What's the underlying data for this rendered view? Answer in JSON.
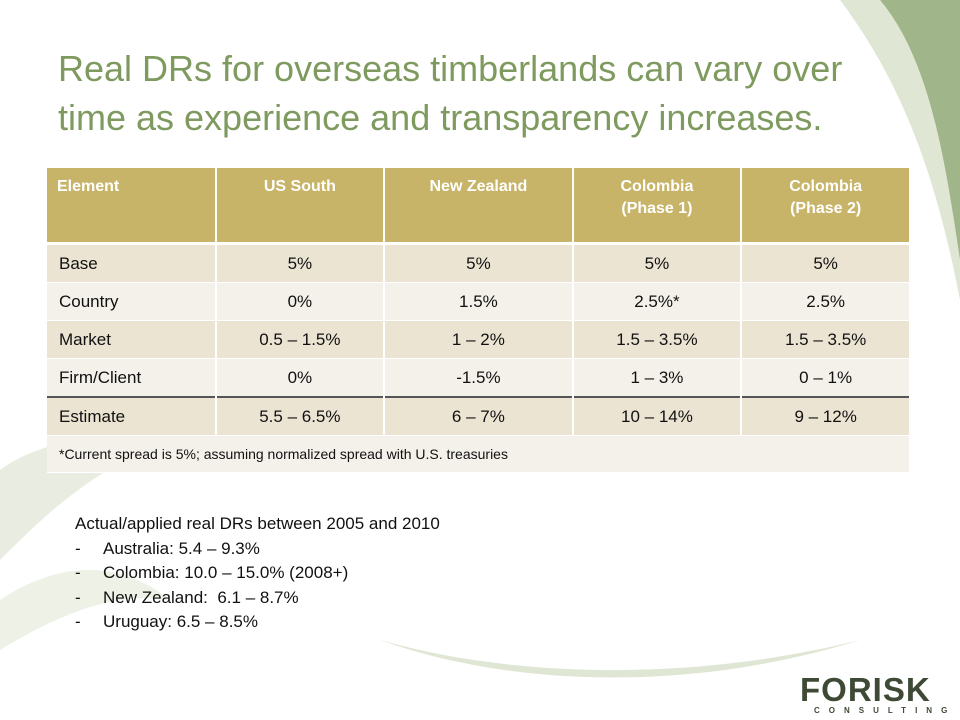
{
  "title": "Real DRs for overseas timberlands can vary over time as experience and transparency increases.",
  "table": {
    "headers": [
      "Element",
      "US South",
      "New Zealand",
      "Colombia\n(Phase 1)",
      "Colombia\n(Phase 2)"
    ],
    "header_lines": [
      [
        "Element"
      ],
      [
        "US South"
      ],
      [
        "New Zealand"
      ],
      [
        "Colombia",
        "(Phase 1)"
      ],
      [
        "Colombia",
        "(Phase 2)"
      ]
    ],
    "rows": [
      [
        "Base",
        "5%",
        "5%",
        "5%",
        "5%"
      ],
      [
        "Country",
        "0%",
        "1.5%",
        "2.5%*",
        "2.5%"
      ],
      [
        "Market",
        "0.5 – 1.5%",
        "1 – 2%",
        "1.5 – 3.5%",
        "1.5 – 3.5%"
      ],
      [
        "Firm/Client",
        "0%",
        "-1.5%",
        "1 – 3%",
        "0 – 1%"
      ],
      [
        "Estimate",
        "5.5 – 6.5%",
        "6 – 7%",
        "10 – 14%",
        "9 – 12%"
      ]
    ],
    "footnote": "*Current spread is 5%; assuming normalized spread with U.S. treasuries"
  },
  "list": {
    "heading": "Actual/applied real DRs between 2005 and 2010",
    "items": [
      "Australia: 5.4 – 9.3%",
      "Colombia: 10.0 – 15.0% (2008+)",
      "New Zealand:  6.1 – 8.7%",
      "Uruguay: 6.5 – 8.5%"
    ],
    "bullet": "-"
  },
  "logo": {
    "name": "FORISK",
    "tagline": "CONSULTING",
    "icon": "tree-icon"
  },
  "colors": {
    "title": "#7e9a5e",
    "header": "#c8b468",
    "row_odd": "#ebe4d3",
    "row_even": "#f4f1ea",
    "accent_green": "#8fa874"
  }
}
